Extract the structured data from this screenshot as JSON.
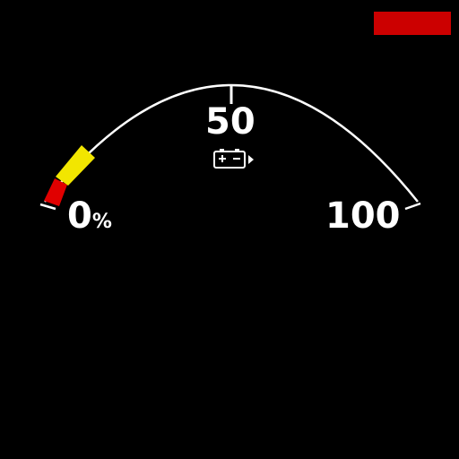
{
  "gauge": {
    "label_min": "0",
    "label_min_unit": "%",
    "label_mid": "50",
    "label_max": "100",
    "level_percent": 15,
    "icon": "battery-icon",
    "colors": {
      "arc": "#ffffff",
      "low": "#e00000",
      "warn": "#f2e600",
      "indicator": "#cc0000"
    }
  }
}
